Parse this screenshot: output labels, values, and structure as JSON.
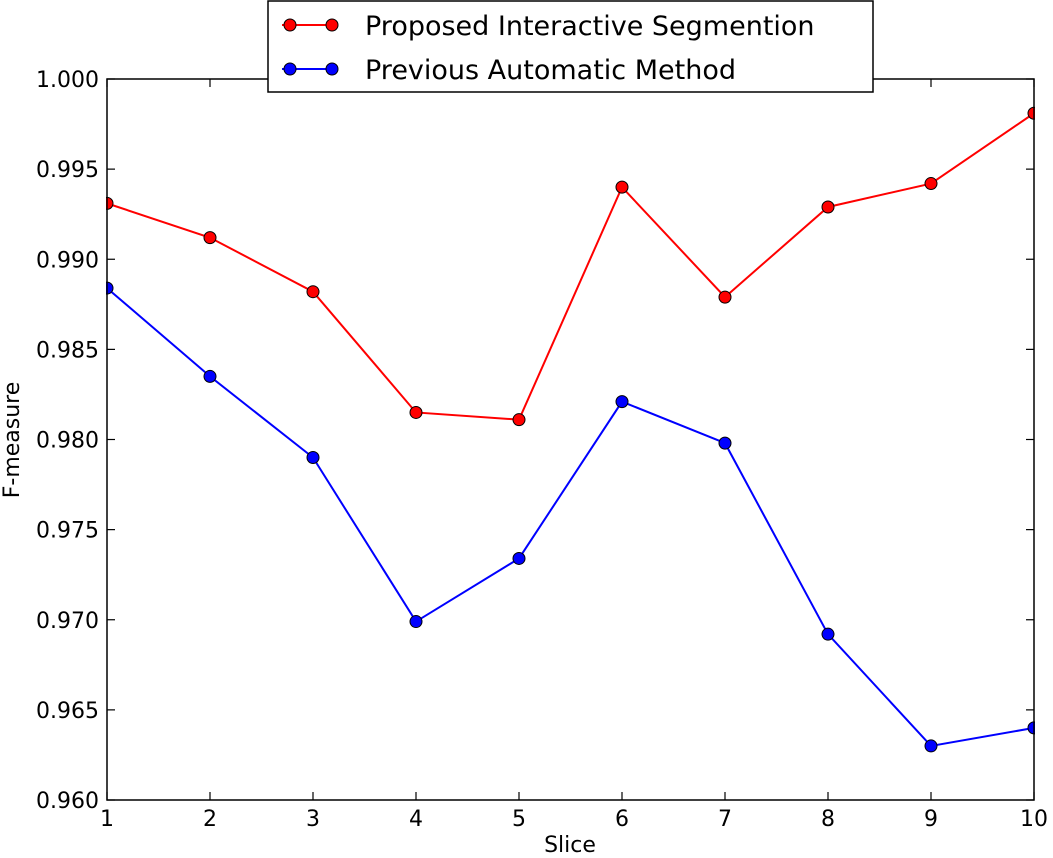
{
  "chart_data": {
    "type": "line",
    "title": "",
    "xlabel": "Slice",
    "ylabel": "F-measure",
    "x": [
      1,
      2,
      3,
      4,
      5,
      6,
      7,
      8,
      9,
      10
    ],
    "xlim": [
      1,
      10
    ],
    "ylim": [
      0.96,
      1.0
    ],
    "xticks": [
      "1",
      "2",
      "3",
      "4",
      "5",
      "6",
      "7",
      "8",
      "9",
      "10"
    ],
    "yticks": [
      "0.960",
      "0.965",
      "0.970",
      "0.975",
      "0.980",
      "0.985",
      "0.990",
      "0.995",
      "1.000"
    ],
    "grid": false,
    "legend_position": "top-center",
    "series": [
      {
        "name": "Proposed Interactive Segmention",
        "color": "#ff0000",
        "line_color": "#ff0000",
        "values": [
          0.9931,
          0.9912,
          0.9882,
          0.9815,
          0.9811,
          0.994,
          0.9879,
          0.9929,
          0.9942,
          0.9981
        ]
      },
      {
        "name": "Previous Automatic Method",
        "color": "#0000ff",
        "line_color": "#0000ff",
        "values": [
          0.9884,
          0.9835,
          0.979,
          0.9699,
          0.9734,
          0.9821,
          0.9798,
          0.9692,
          0.963,
          0.964
        ]
      }
    ]
  }
}
